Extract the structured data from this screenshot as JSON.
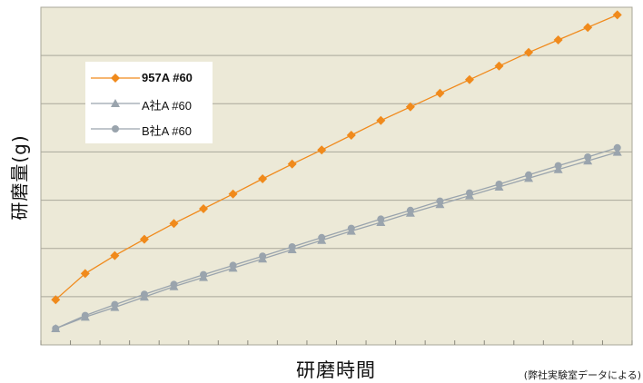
{
  "chart_data": {
    "type": "line",
    "xlabel": "研磨時間",
    "ylabel": "研磨量(g)",
    "note": "(弊社実験室データによる)",
    "grid": true,
    "x": [
      1,
      2,
      3,
      4,
      5,
      6,
      7,
      8,
      9,
      10,
      11,
      12,
      13,
      14,
      15,
      16,
      17,
      18,
      19,
      20
    ],
    "ylim": [
      0,
      6.2
    ],
    "series": [
      {
        "name": "957A #60",
        "color": "#f08a1c",
        "marker": "diamond",
        "values": [
          0.83,
          1.31,
          1.64,
          1.94,
          2.23,
          2.5,
          2.77,
          3.05,
          3.32,
          3.58,
          3.85,
          4.12,
          4.37,
          4.62,
          4.87,
          5.12,
          5.37,
          5.6,
          5.83,
          6.06
        ]
      },
      {
        "name": "A社A #60",
        "color": "#9aa4ad",
        "marker": "triangle",
        "values": [
          0.3,
          0.51,
          0.69,
          0.88,
          1.07,
          1.24,
          1.41,
          1.58,
          1.75,
          1.92,
          2.09,
          2.25,
          2.42,
          2.58,
          2.74,
          2.9,
          3.06,
          3.22,
          3.38,
          3.54
        ]
      },
      {
        "name": "B社A #60",
        "color": "#9aa4ad",
        "marker": "circle",
        "values": [
          0.3,
          0.54,
          0.74,
          0.93,
          1.11,
          1.29,
          1.46,
          1.63,
          1.8,
          1.97,
          2.14,
          2.31,
          2.47,
          2.64,
          2.79,
          2.95,
          3.12,
          3.29,
          3.45,
          3.62
        ]
      }
    ]
  }
}
